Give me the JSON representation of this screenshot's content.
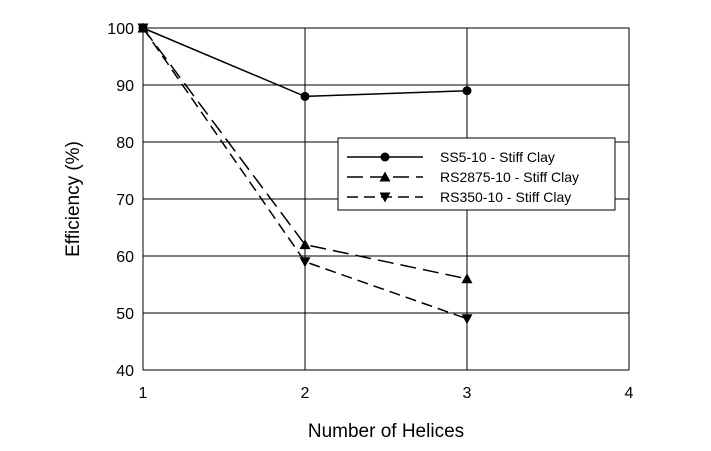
{
  "chart_data": {
    "type": "line",
    "title": "",
    "xlabel": "Number of Helices",
    "ylabel": "Efficiency (%)",
    "xlim": [
      1,
      4
    ],
    "ylim": [
      40,
      100
    ],
    "x_ticks": [
      "1",
      "2",
      "3",
      "4"
    ],
    "y_ticks": [
      "40",
      "50",
      "60",
      "70",
      "80",
      "90",
      "100"
    ],
    "grid": "horizontal and vertical",
    "legend_position": "right",
    "series": [
      {
        "name": "SS5-10 - Stiff Clay",
        "x": [
          1,
          2,
          3
        ],
        "y": [
          100,
          88,
          89
        ],
        "marker": "circle",
        "line_style": "solid",
        "color": "#000000"
      },
      {
        "name": "RS2875-10 - Stiff Clay",
        "x": [
          1,
          2,
          3
        ],
        "y": [
          100,
          62,
          56
        ],
        "marker": "triangle-up",
        "line_style": "long-dash",
        "color": "#000000"
      },
      {
        "name": "RS350-10 - Stiff Clay",
        "x": [
          1,
          2,
          3
        ],
        "y": [
          100,
          59,
          49
        ],
        "marker": "triangle-down",
        "line_style": "dash",
        "color": "#000000"
      }
    ]
  }
}
